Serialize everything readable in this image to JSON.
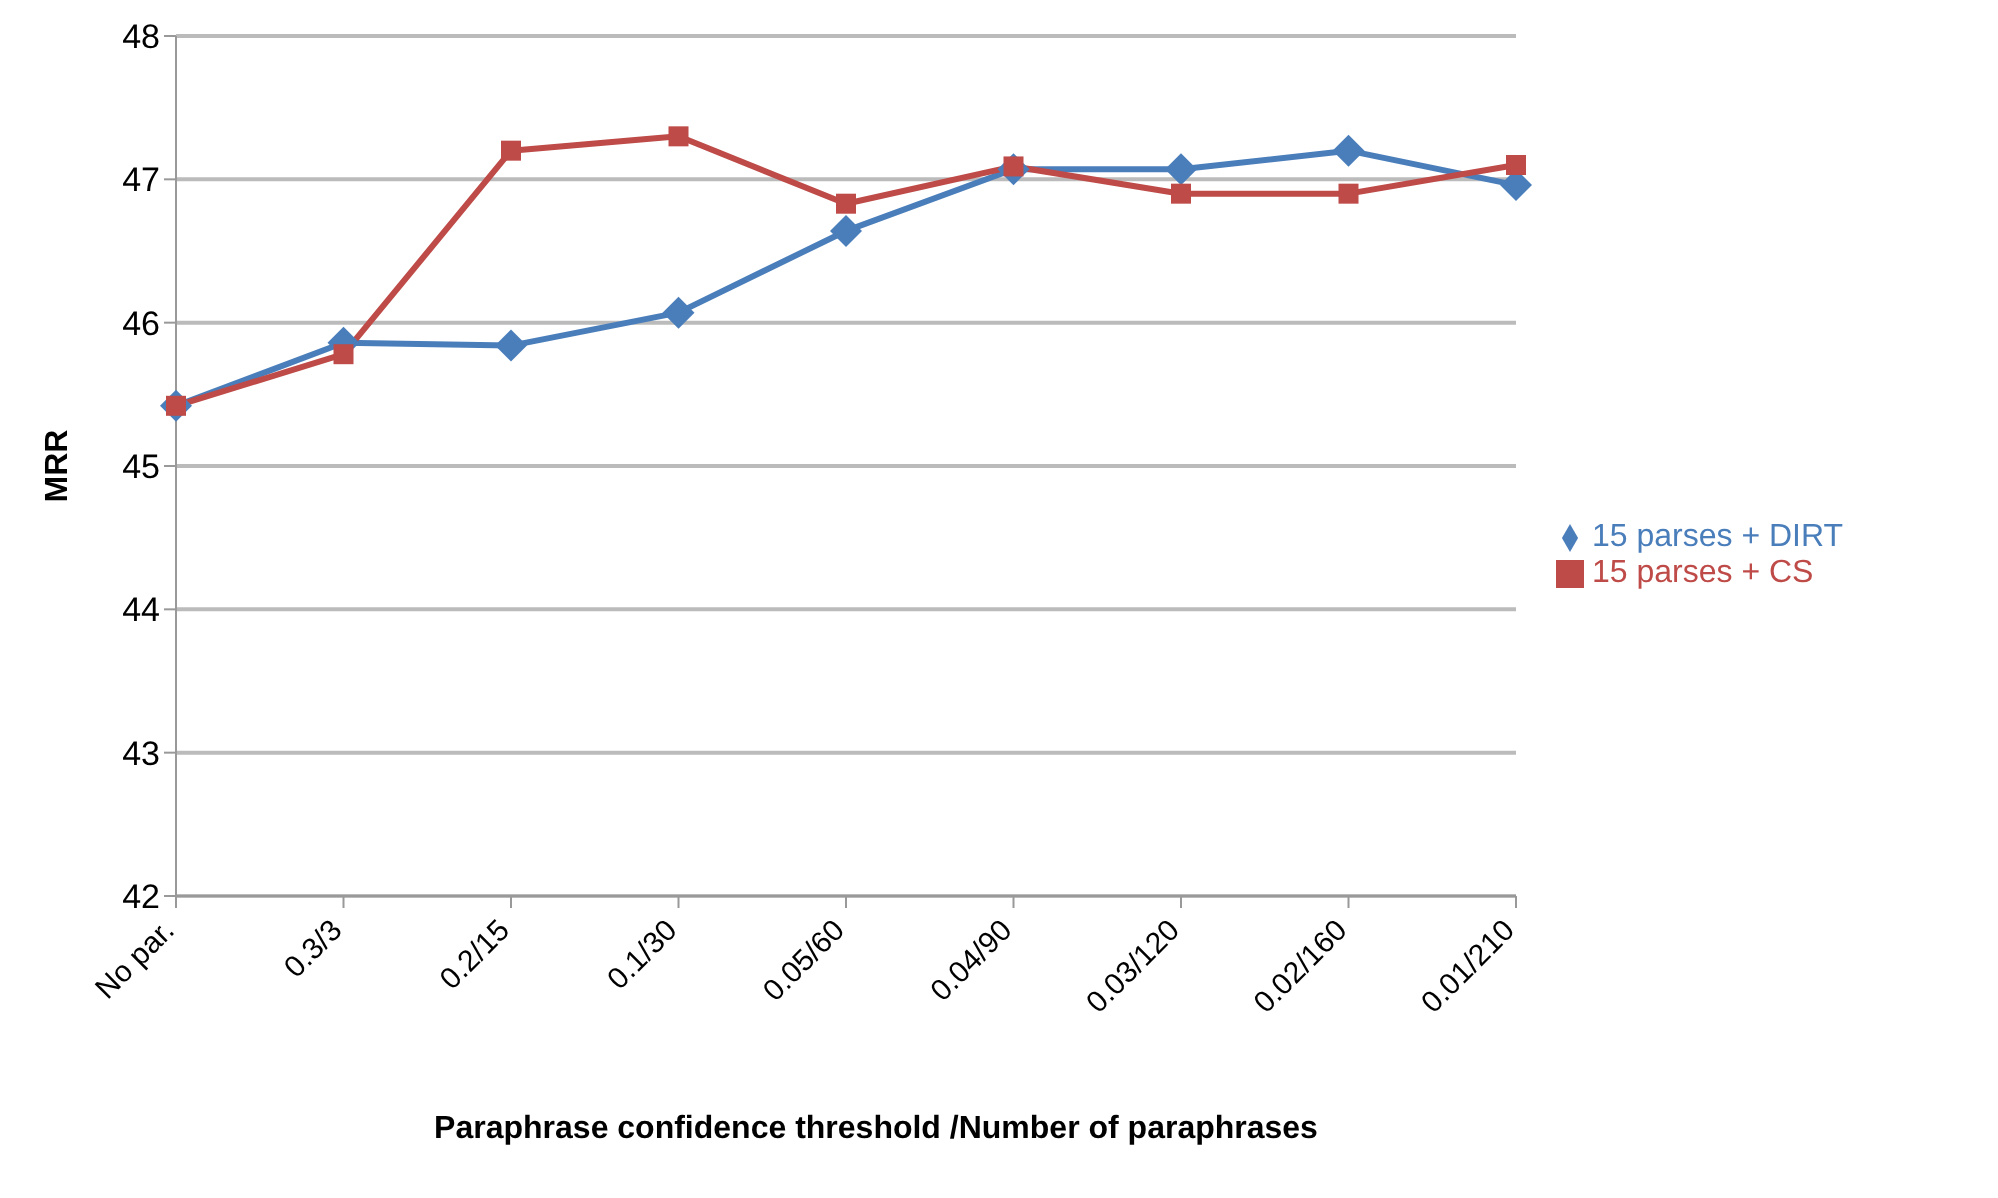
{
  "chart_data": {
    "type": "line",
    "xlabel": "Paraphrase confidence threshold /Number of paraphrases",
    "ylabel": "MRR",
    "categories": [
      "No par.",
      "0.3/3",
      "0.2/15",
      "0.1/30",
      "0.05/60",
      "0.04/90",
      "0.03/120",
      "0.02/160",
      "0.01/210"
    ],
    "series": [
      {
        "name": "15 parses + DIRT",
        "color": "#4a7ebb",
        "marker": "diamond",
        "values": [
          45.42,
          45.86,
          45.84,
          46.07,
          46.64,
          47.07,
          47.07,
          47.2,
          46.96
        ]
      },
      {
        "name": "15 parses + CS",
        "color": "#be4b48",
        "marker": "square",
        "values": [
          45.42,
          45.78,
          47.2,
          47.3,
          46.83,
          47.09,
          46.9,
          46.9,
          47.1
        ]
      }
    ],
    "ylim": [
      42,
      48
    ],
    "yticks": [
      42,
      43,
      44,
      45,
      46,
      47,
      48
    ],
    "grid": "y",
    "legend": "right"
  }
}
